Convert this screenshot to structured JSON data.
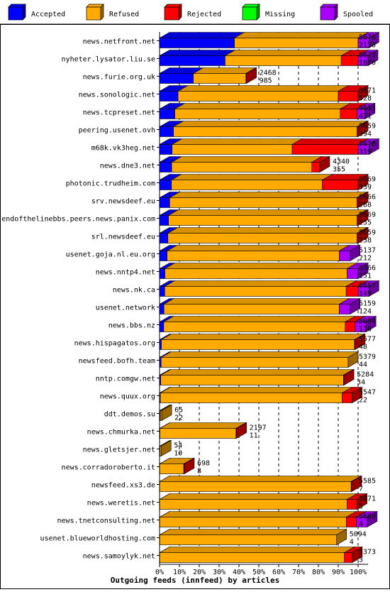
{
  "chart_data": {
    "type": "bar",
    "orientation": "horizontal",
    "stacked": true,
    "title": "Outgoing feeds (innfeed) by articles",
    "xlim": [
      0,
      100
    ],
    "x_ticks": [
      "0%",
      "10%",
      "20%",
      "30%",
      "40%",
      "50%",
      "60%",
      "70%",
      "80%",
      "90%",
      "100%"
    ],
    "grid": true,
    "legend_position": "top",
    "series": [
      {
        "name": "Accepted",
        "color": "#0000ff"
      },
      {
        "name": "Refused",
        "color": "#ffaa00"
      },
      {
        "name": "Rejected",
        "color": "#ff0000"
      },
      {
        "name": "Missing",
        "color": "#00ff00"
      },
      {
        "name": "Spooled",
        "color": "#aa00ff"
      }
    ],
    "rows": [
      {
        "name": "news.netfront.net",
        "offered": "5676",
        "accepted": "2138",
        "segments": [
          37.7,
          62.3,
          0,
          0,
          5.5
        ]
      },
      {
        "name": "nyheter.lysator.liu.se",
        "offered": "5673",
        "accepted": "1870",
        "segments": [
          33.0,
          58.5,
          8.5,
          0,
          5.0
        ]
      },
      {
        "name": "news.furie.org.uk",
        "offered": "2468",
        "accepted": "985",
        "segments": [
          17.0,
          26.5,
          0.1,
          0,
          0
        ]
      },
      {
        "name": "news.sonologic.net",
        "offered": "5671",
        "accepted": "528",
        "segments": [
          9.3,
          80.7,
          10.0,
          0,
          0
        ]
      },
      {
        "name": "news.tcpreset.net",
        "offered": "5633",
        "accepted": "431",
        "segments": [
          7.7,
          83.3,
          8.5,
          0,
          4.0
        ]
      },
      {
        "name": "peering.usenet.ovh",
        "offered": "5659",
        "accepted": "394",
        "segments": [
          7.0,
          92.5,
          0.5,
          0,
          0
        ]
      },
      {
        "name": "m68k.vk3heg.net",
        "offered": "5676",
        "accepted": "359",
        "segments": [
          6.3,
          60.5,
          33.2,
          0,
          5.5
        ]
      },
      {
        "name": "news.dne3.net",
        "offered": "4340",
        "accepted": "355",
        "segments": [
          6.1,
          70.6,
          4.0,
          0,
          0
        ]
      },
      {
        "name": "photonic.trudheim.com",
        "offered": "5669",
        "accepted": "339",
        "segments": [
          6.0,
          76.0,
          18.0,
          0,
          0
        ]
      },
      {
        "name": "srv.newsdeef.eu",
        "offered": "5666",
        "accepted": "288",
        "segments": [
          5.1,
          94.3,
          0.6,
          0,
          0
        ]
      },
      {
        "name": "endofthelinebbs.peers.news.panix.com",
        "offered": "5669",
        "accepted": "255",
        "segments": [
          4.5,
          95.0,
          0.5,
          0,
          0
        ]
      },
      {
        "name": "srl.newsdeef.eu",
        "offered": "5659",
        "accepted": "238",
        "segments": [
          4.2,
          95.3,
          0.5,
          0,
          0
        ]
      },
      {
        "name": "usenet.goja.nl.eu.org",
        "offered": "5137",
        "accepted": "212",
        "segments": [
          3.8,
          86.7,
          0,
          0,
          5.5
        ]
      },
      {
        "name": "news.nntp4.net",
        "offered": "5366",
        "accepted": "151",
        "segments": [
          2.7,
          91.8,
          0,
          0,
          5.5
        ]
      },
      {
        "name": "news.nk.ca",
        "offered": "5657",
        "accepted": "149",
        "segments": [
          2.6,
          91.4,
          6.0,
          0,
          5.5
        ]
      },
      {
        "name": "usenet.network",
        "offered": "5159",
        "accepted": "124",
        "segments": [
          2.2,
          88.3,
          0,
          0,
          5.5
        ]
      },
      {
        "name": "news.bbs.nz",
        "offered": "5694",
        "accepted": "118",
        "segments": [
          2.1,
          91.4,
          5.0,
          0,
          5.5
        ]
      },
      {
        "name": "news.hispagatos.org",
        "offered": "5577",
        "accepted": "48",
        "segments": [
          0.9,
          97.3,
          0.3,
          0,
          0
        ]
      },
      {
        "name": "newsfeed.bofh.team",
        "offered": "5379",
        "accepted": "44",
        "segments": [
          0.8,
          94.2,
          0,
          0,
          0
        ]
      },
      {
        "name": "nntp.comgw.net",
        "offered": "5284",
        "accepted": "34",
        "segments": [
          0.6,
          92.0,
          0.3,
          0,
          0
        ]
      },
      {
        "name": "news.quux.org",
        "offered": "5547",
        "accepted": "22",
        "segments": [
          0.4,
          91.6,
          5.0,
          0,
          0
        ]
      },
      {
        "name": "ddt.demos.su",
        "offered": "65",
        "accepted": "22",
        "segments": [
          0.4,
          0.7,
          0,
          0,
          0
        ]
      },
      {
        "name": "news.chmurka.net",
        "offered": "2197",
        "accepted": "11",
        "segments": [
          0.2,
          38.3,
          0.1,
          0,
          0
        ]
      },
      {
        "name": "news.gletsjer.net",
        "offered": "54",
        "accepted": "10",
        "segments": [
          0.2,
          0.6,
          0,
          0,
          0
        ]
      },
      {
        "name": "news.corradoroberto.it",
        "offered": "698",
        "accepted": "8",
        "segments": [
          0.1,
          12.1,
          0.1,
          0,
          0
        ]
      },
      {
        "name": "newsfeed.xs3.de",
        "offered": "5585",
        "accepted": "7",
        "segments": [
          0.1,
          96.4,
          0.2,
          0,
          0
        ]
      },
      {
        "name": "news.weretis.net",
        "offered": "5671",
        "accepted": "5",
        "segments": [
          0.1,
          94.4,
          5.0,
          0,
          0
        ]
      },
      {
        "name": "news.tnetconsulting.net",
        "offered": "5689",
        "accepted": "4",
        "segments": [
          0.1,
          94.0,
          5.0,
          0,
          5.5
        ]
      },
      {
        "name": "usenet.blueworldhosting.com",
        "offered": "5094",
        "accepted": "4",
        "segments": [
          0.1,
          89.1,
          0,
          0,
          0
        ]
      },
      {
        "name": "news.samoylyk.net",
        "offered": "5373",
        "accepted": "3",
        "segments": [
          0.1,
          93.0,
          4.0,
          0,
          0
        ]
      }
    ]
  }
}
